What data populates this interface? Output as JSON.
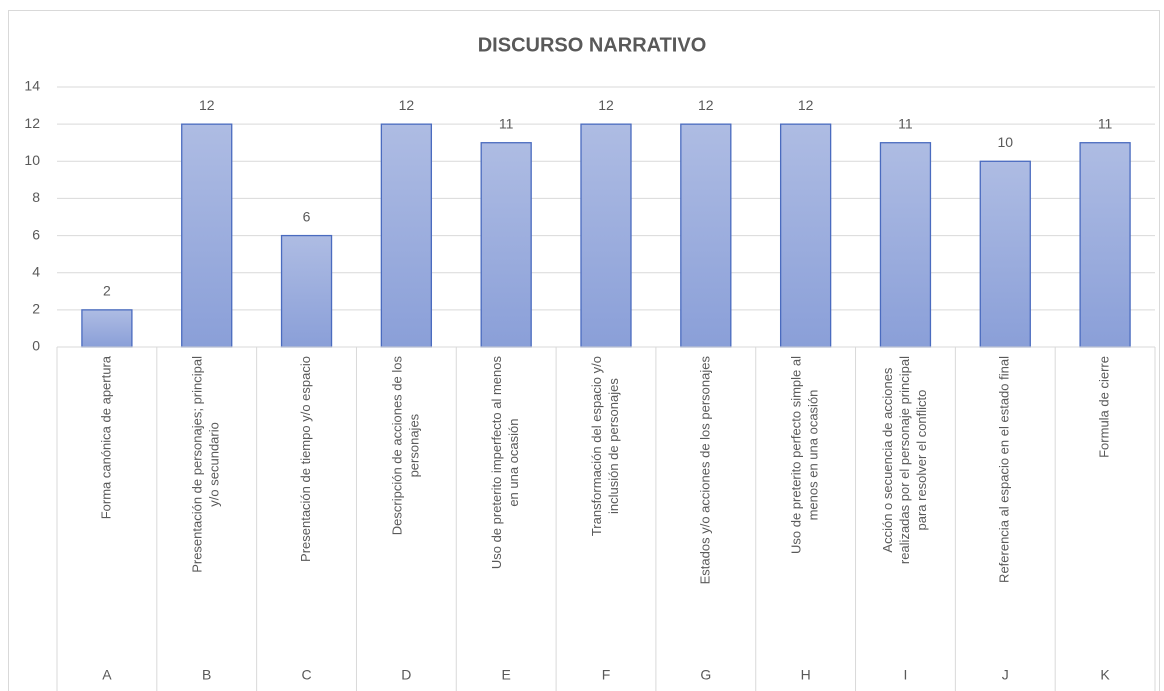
{
  "chart_data": {
    "type": "bar",
    "title": "DISCURSO NARRATIVO",
    "groups": [
      "A",
      "B",
      "C",
      "D",
      "E",
      "F",
      "G",
      "H",
      "I",
      "J",
      "K"
    ],
    "categories": [
      [
        "Forma canónica de apertura"
      ],
      [
        "Presentación de personajes; principal",
        "y/o secundario"
      ],
      [
        "Presentación de tiempo y/o espacio"
      ],
      [
        "Descripción de acciones de los",
        "personajes"
      ],
      [
        "Uso de preterito imperfecto al menos",
        "en una ocasión"
      ],
      [
        "Transformación del espacio y/o",
        "inclusión de personajes"
      ],
      [
        "Estados y/o acciones de los personajes"
      ],
      [
        "Uso de preterito perfecto simple al",
        "menos en una ocasión"
      ],
      [
        "Acción o secuencia de acciones",
        "realizadas por el personaje principal",
        "para resolver el conflicto"
      ],
      [
        "Referencia al espacio en el estado final"
      ],
      [
        "Formula de cierre"
      ]
    ],
    "values": [
      2,
      12,
      6,
      12,
      11,
      12,
      12,
      12,
      11,
      10,
      11
    ],
    "color": "#98abdc",
    "ylim": [
      0,
      14
    ],
    "yticks": [
      0,
      2,
      4,
      6,
      8,
      10,
      12,
      14
    ],
    "grid": true
  }
}
